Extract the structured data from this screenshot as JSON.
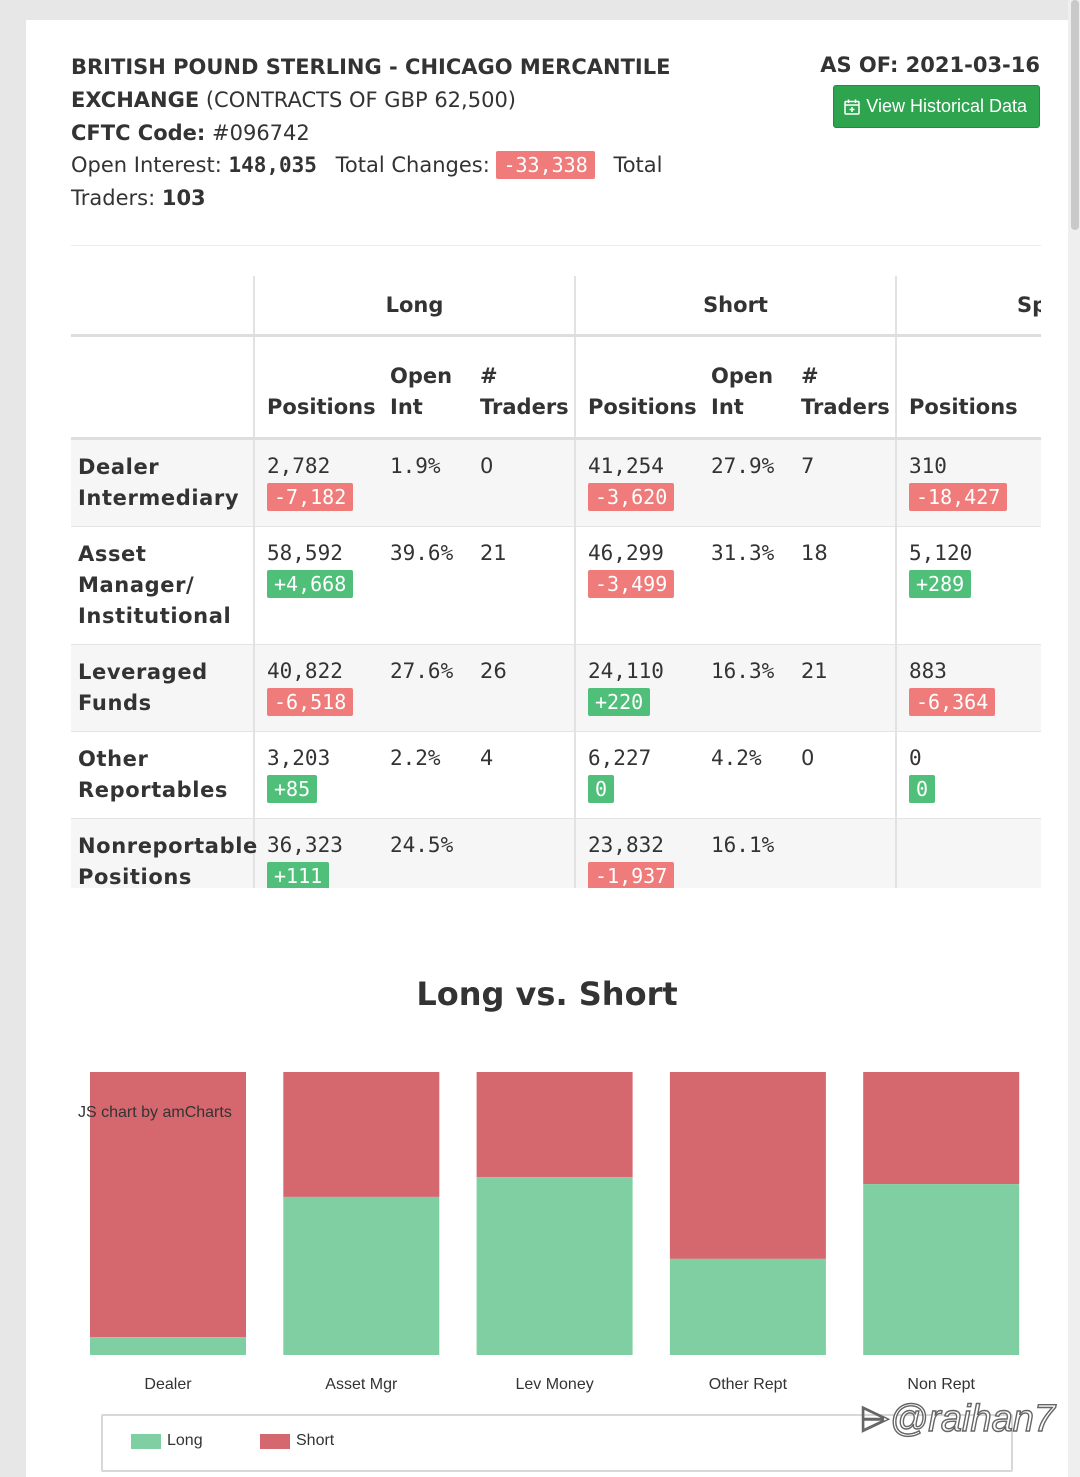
{
  "header": {
    "title_bold": "BRITISH POUND STERLING - CHICAGO MERCANTILE",
    "title_line2_bold": "EXCHANGE",
    "title_line2_rest": " (CONTRACTS OF GBP 62,500)",
    "cftc_label": "CFTC Code:",
    "cftc_value": " #096742",
    "open_interest_label": "Open Interest: ",
    "open_interest_value": "148,035",
    "total_changes_label": "Total Changes: ",
    "total_changes_value": "-33,338",
    "total_word": "Total",
    "traders_label": "Traders: ",
    "traders_value": "103",
    "as_of": "AS OF: 2021-03-16",
    "button_label": "View Historical Data",
    "button_icon": "calendar-plus-icon"
  },
  "table": {
    "groups": [
      "Long",
      "Short",
      "Sp"
    ],
    "col_positions": "Positions",
    "col_open_int": [
      "Open",
      "Int"
    ],
    "col_traders": [
      "#",
      "Traders"
    ],
    "rows": [
      {
        "category": [
          "Dealer",
          "Intermediary"
        ],
        "long": {
          "positions": "2,782",
          "change": "-7,182",
          "open_int": "1.9%",
          "traders": "0"
        },
        "short": {
          "positions": "41,254",
          "change": "-3,620",
          "open_int": "27.9%",
          "traders": "7"
        },
        "spread": {
          "positions": "310",
          "change": "-18,427"
        }
      },
      {
        "category": [
          "Asset",
          "Manager/",
          "Institutional"
        ],
        "long": {
          "positions": "58,592",
          "change": "+4,668",
          "open_int": "39.6%",
          "traders": "21"
        },
        "short": {
          "positions": "46,299",
          "change": "-3,499",
          "open_int": "31.3%",
          "traders": "18"
        },
        "spread": {
          "positions": "5,120",
          "change": "+289"
        }
      },
      {
        "category": [
          "Leveraged",
          "Funds"
        ],
        "long": {
          "positions": "40,822",
          "change": "-6,518",
          "open_int": "27.6%",
          "traders": "26"
        },
        "short": {
          "positions": "24,110",
          "change": "+220",
          "open_int": "16.3%",
          "traders": "21"
        },
        "spread": {
          "positions": "883",
          "change": "-6,364"
        }
      },
      {
        "category": [
          "Other",
          "Reportables"
        ],
        "long": {
          "positions": "3,203",
          "change": "+85",
          "open_int": "2.2%",
          "traders": "4"
        },
        "short": {
          "positions": "6,227",
          "change": "0",
          "open_int": "4.2%",
          "traders": "0"
        },
        "spread": {
          "positions": "0",
          "change": "0"
        }
      },
      {
        "category": [
          "Nonreportable",
          "Positions"
        ],
        "long": {
          "positions": "36,323",
          "change": "+111",
          "open_int": "24.5%",
          "traders": ""
        },
        "short": {
          "positions": "23,832",
          "change": "-1,937",
          "open_int": "16.1%",
          "traders": ""
        },
        "spread": {
          "positions": "",
          "change": ""
        }
      }
    ]
  },
  "chart_data": {
    "type": "bar",
    "stacked": "100%",
    "title": "Long vs. Short",
    "credit": "JS chart by amCharts",
    "categories": [
      "Dealer",
      "Asset Mgr",
      "Lev Money",
      "Other Rept",
      "Non Rept"
    ],
    "series": [
      {
        "name": "Long",
        "color": "#7fcfa3",
        "values": [
          2782,
          58592,
          40822,
          3203,
          36323
        ]
      },
      {
        "name": "Short",
        "color": "#d5676f",
        "values": [
          41254,
          46299,
          24110,
          6227,
          23832
        ]
      }
    ],
    "legend_position": "bottom"
  },
  "colors": {
    "positive": "#4fbf7a",
    "negative": "#ef7b7b",
    "button": "#2ea44f",
    "long": "#7fcfa3",
    "short": "#d5676f"
  },
  "watermark": "@raihan7",
  "watermark_icon": "weibo-icon"
}
